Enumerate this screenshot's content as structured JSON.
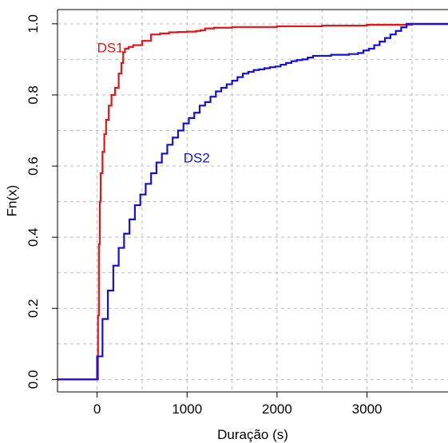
{
  "chart_data": {
    "type": "line",
    "step": true,
    "title": "",
    "xlabel": "Duração (s)",
    "ylabel": "Fn(x)",
    "xlim": [
      -440,
      3900
    ],
    "ylim": [
      -0.035,
      1.04
    ],
    "xticks": [
      0,
      1000,
      2000,
      3000
    ],
    "xtick_labels": [
      "0",
      "1000",
      "2000",
      "3000"
    ],
    "yticks": [
      0.0,
      0.2,
      0.4,
      0.6,
      0.8,
      1.0
    ],
    "ytick_labels": [
      "0.0",
      "0.2",
      "0.4",
      "0.6",
      "0.8",
      "1.0"
    ],
    "grid": true,
    "legend": "none",
    "series": [
      {
        "name": "DS1",
        "color": "#ee1111",
        "label_at": [
          0.0,
          0.93
        ],
        "x": [
          -440,
          0,
          10,
          20,
          30,
          40,
          60,
          80,
          100,
          130,
          160,
          200,
          240,
          270,
          290,
          310,
          350,
          400,
          500,
          600,
          700,
          800,
          900,
          1000,
          1100,
          1150,
          1200,
          1300,
          1500,
          2000,
          2500,
          3000,
          3500,
          3900
        ],
        "y": [
          0.0,
          0.0,
          0.18,
          0.38,
          0.5,
          0.58,
          0.64,
          0.69,
          0.73,
          0.77,
          0.8,
          0.82,
          0.86,
          0.89,
          0.92,
          0.93,
          0.935,
          0.94,
          0.952,
          0.97,
          0.973,
          0.976,
          0.977,
          0.978,
          0.98,
          0.982,
          0.987,
          0.989,
          0.991,
          0.993,
          0.995,
          0.997,
          0.999,
          1.0
        ]
      },
      {
        "name": "DS2",
        "color": "#1111dd",
        "label_at": [
          960,
          0.62
        ],
        "x": [
          -440,
          0,
          60,
          120,
          180,
          240,
          300,
          360,
          420,
          480,
          540,
          600,
          660,
          720,
          780,
          840,
          900,
          960,
          1020,
          1080,
          1140,
          1200,
          1260,
          1320,
          1380,
          1440,
          1500,
          1560,
          1620,
          1680,
          1740,
          1800,
          1860,
          1920,
          1980,
          2040,
          2100,
          2160,
          2220,
          2280,
          2340,
          2400,
          2600,
          2800,
          2900,
          2960,
          3020,
          3080,
          3140,
          3200,
          3260,
          3320,
          3380,
          3440,
          3900
        ],
        "y": [
          0.0,
          0.065,
          0.17,
          0.25,
          0.32,
          0.37,
          0.41,
          0.45,
          0.49,
          0.52,
          0.55,
          0.58,
          0.61,
          0.635,
          0.66,
          0.68,
          0.7,
          0.72,
          0.735,
          0.75,
          0.77,
          0.78,
          0.795,
          0.81,
          0.82,
          0.83,
          0.84,
          0.85,
          0.86,
          0.865,
          0.87,
          0.872,
          0.875,
          0.878,
          0.88,
          0.885,
          0.89,
          0.895,
          0.898,
          0.9,
          0.905,
          0.91,
          0.913,
          0.915,
          0.918,
          0.925,
          0.93,
          0.94,
          0.95,
          0.96,
          0.97,
          0.98,
          0.99,
          1.0,
          1.0
        ]
      }
    ]
  }
}
